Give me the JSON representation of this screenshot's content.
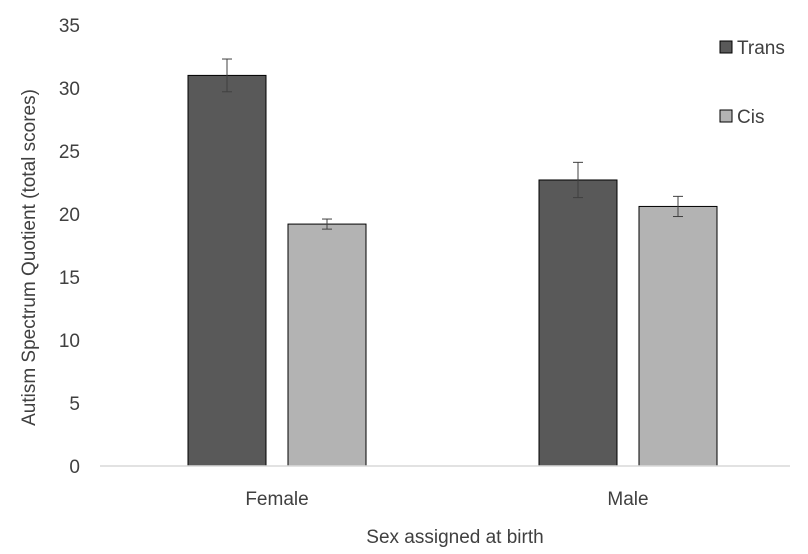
{
  "chart_data": {
    "type": "bar",
    "categories": [
      "Female",
      "Male"
    ],
    "series": [
      {
        "name": "Trans",
        "values": [
          31.0,
          22.7
        ],
        "errors": [
          1.3,
          1.4
        ],
        "color": "#595959"
      },
      {
        "name": "Cis",
        "values": [
          19.2,
          20.6
        ],
        "errors": [
          0.4,
          0.8
        ],
        "color": "#b3b3b3"
      }
    ],
    "title": "",
    "xlabel": "Sex assigned at birth",
    "ylabel": "Autism Spectrum Quotient (total scores)",
    "ylim": [
      0,
      35
    ],
    "yticks": [
      0,
      5,
      10,
      15,
      20,
      25,
      30,
      35
    ],
    "grid": false,
    "legend": "top-right"
  }
}
